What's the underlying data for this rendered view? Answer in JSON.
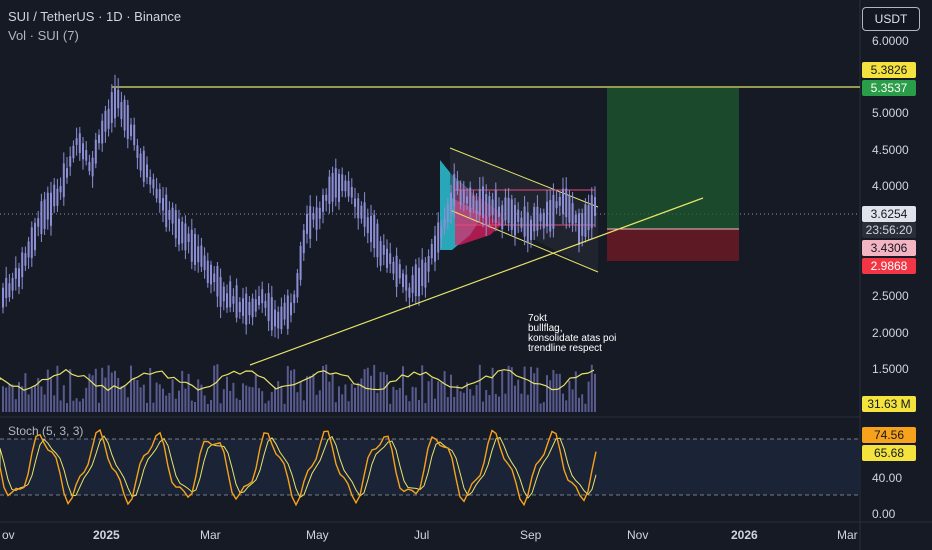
{
  "header": {
    "symbol_line": "SUI / TetherUS · 1D · Binance",
    "volume_line": "Vol · SUI (7)"
  },
  "currency_button": "USDT",
  "price_axis": [
    "6.0000",
    "5.0000",
    "4.5000",
    "4.0000",
    "2.5000",
    "2.0000",
    "1.5000"
  ],
  "tags": {
    "target_upper": "5.3826",
    "target_lower": "5.3537",
    "last_price": "3.6254",
    "countdown": "23:56:20",
    "entry": "3.4306",
    "stop": "2.9868",
    "volume": "31.63 M"
  },
  "stoch": {
    "label": "Stoch (5, 3, 3)",
    "k_value": "74.56",
    "d_value": "65.68",
    "axis": [
      "40.00",
      "0.00"
    ]
  },
  "time_axis": [
    "ov",
    "2025",
    "Mar",
    "May",
    "Jul",
    "Sep",
    "Nov",
    "2026",
    "Mar"
  ],
  "annotation": {
    "lines": [
      "7okt",
      "bullflag,",
      "konsolidate atas poi",
      "trendline respect"
    ]
  },
  "colors": {
    "background": "#161a25",
    "candle": "#8d8fd6",
    "volume": "#6a6aa8",
    "trendline": "#e6e36a",
    "k_line": "#f7a21b",
    "d_line": "#e6e36a",
    "target_zone": "#1e5a2d",
    "stop_zone": "#6b1b25"
  }
}
